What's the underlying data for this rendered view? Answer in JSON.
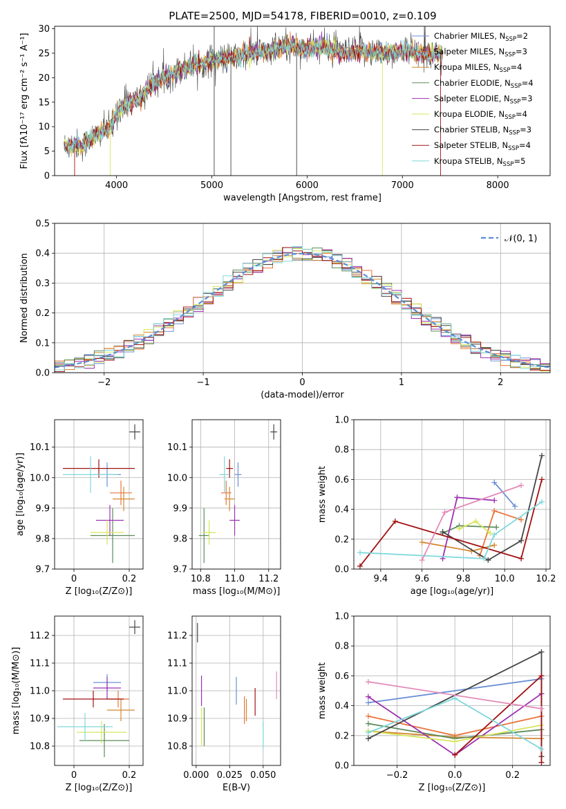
{
  "figure": {
    "title": "PLATE=2500, MJD=54178, FIBERID=0010, z=0.109"
  },
  "models": [
    {
      "name": "Chabrier MILES",
      "nssp": "2",
      "color": "#6b8fd6"
    },
    {
      "name": "Salpeter MILES",
      "nssp": "3",
      "color": "#e8743b"
    },
    {
      "name": "Kroupa MILES",
      "nssp": "4",
      "color": "#d4872f"
    },
    {
      "name": "Chabrier ELODIE",
      "nssp": "4",
      "color": "#5a8a5a"
    },
    {
      "name": "Salpeter ELODIE",
      "nssp": "3",
      "color": "#9b30b0"
    },
    {
      "name": "Kroupa ELODIE",
      "nssp": "4",
      "color": "#d6e55a"
    },
    {
      "name": "Chabrier STELIB",
      "nssp": "3",
      "color": "#444444"
    },
    {
      "name": "Salpeter STELIB",
      "nssp": "4",
      "color": "#a01010"
    },
    {
      "name": "Kroupa STELIB",
      "nssp": "5",
      "color": "#7fd8dc"
    }
  ],
  "chart_data": [
    {
      "id": "spectrum",
      "type": "line",
      "xlabel": "wavelength [Angstrom, rest frame]",
      "ylabel": "Flux [fλ10⁻¹⁷ erg cm⁻² s⁻¹ A⁻¹]",
      "xlim": [
        3350,
        8550
      ],
      "ylim": [
        0,
        30.5
      ],
      "xticks": [
        4000,
        5000,
        6000,
        7000,
        8000
      ],
      "yticks": [
        0,
        5,
        10,
        15,
        20,
        25,
        30
      ],
      "legend_position": "top-right",
      "continuum": {
        "x": [
          3450,
          3560,
          3640,
          3720,
          3850,
          3950,
          4000,
          4100,
          4250,
          4400,
          4600,
          4800,
          5000,
          5200,
          5400,
          5600,
          5800,
          6000,
          6200,
          6400,
          6600,
          6800,
          7000,
          7200,
          7400
        ],
        "y": [
          6.0,
          6.5,
          6.0,
          7.5,
          9.0,
          10.0,
          13.0,
          14.5,
          16.0,
          19.0,
          21.0,
          22.5,
          23.5,
          24.0,
          25.0,
          25.5,
          26.5,
          26.0,
          26.0,
          25.0,
          25.5,
          25.0,
          25.5,
          25.0,
          25.0
        ]
      }
    },
    {
      "id": "residuals",
      "type": "histogram",
      "xlabel": "(data-model)/error",
      "ylabel": "Normed distribution",
      "xlim": [
        -2.5,
        2.5
      ],
      "ylim": [
        0,
        0.5
      ],
      "xticks": [
        -2,
        -1,
        0,
        1,
        2
      ],
      "yticks": [
        0.0,
        0.1,
        0.2,
        0.3,
        0.4,
        0.5
      ],
      "grid": true,
      "bin_width": 0.1,
      "normal_label": "𝒩(0, 1)",
      "normal_color": "#5b8bd6",
      "legend_position": "top-right"
    },
    {
      "id": "age-vs-Z",
      "type": "scatter-errorbar",
      "xlabel": "Z [log₁₀(Z/Z⊙)]",
      "ylabel": "age  [log₁₀(age/yr)]",
      "xlim": [
        -0.07,
        0.25
      ],
      "ylim": [
        9.7,
        10.19
      ],
      "xticks": [
        0.0,
        0.2
      ],
      "yticks": [
        9.7,
        9.8,
        9.9,
        10.0,
        10.1
      ],
      "grid": true,
      "points": [
        {
          "model": 0,
          "x": 0.12,
          "xerr": 0.05,
          "y": 10.01,
          "yerr": 0.04
        },
        {
          "model": 1,
          "x": 0.17,
          "xerr": 0.04,
          "y": 9.95,
          "yerr": 0.04
        },
        {
          "model": 2,
          "x": 0.18,
          "xerr": 0.04,
          "y": 9.93,
          "yerr": 0.04
        },
        {
          "model": 3,
          "x": 0.14,
          "xerr": 0.08,
          "y": 9.81,
          "yerr": 0.09
        },
        {
          "model": 4,
          "x": 0.13,
          "xerr": 0.05,
          "y": 9.86,
          "yerr": 0.05
        },
        {
          "model": 5,
          "x": 0.12,
          "xerr": 0.06,
          "y": 9.82,
          "yerr": 0.04
        },
        {
          "model": 6,
          "x": 0.22,
          "xerr": 0.02,
          "y": 10.15,
          "yerr": 0.025
        },
        {
          "model": 7,
          "x": 0.09,
          "xerr": 0.13,
          "y": 10.03,
          "yerr": 0.03
        },
        {
          "model": 8,
          "x": 0.06,
          "xerr": 0.1,
          "y": 10.01,
          "yerr": 0.06
        }
      ]
    },
    {
      "id": "age-vs-mass",
      "type": "scatter-errorbar",
      "xlabel": "mass [log₁₀(M/M⊙)]",
      "ylabel": "",
      "xlim": [
        10.75,
        11.27
      ],
      "ylim": [
        9.7,
        10.19
      ],
      "xticks": [
        10.8,
        11.0,
        11.2
      ],
      "yticks": [
        9.7,
        9.8,
        9.9,
        10.0,
        10.1
      ],
      "grid": true,
      "points": [
        {
          "model": 0,
          "x": 11.02,
          "xerr": 0.02,
          "y": 10.01,
          "yerr": 0.04
        },
        {
          "model": 1,
          "x": 10.95,
          "xerr": 0.03,
          "y": 9.95,
          "yerr": 0.04
        },
        {
          "model": 2,
          "x": 10.97,
          "xerr": 0.03,
          "y": 9.93,
          "yerr": 0.04
        },
        {
          "model": 3,
          "x": 10.82,
          "xerr": 0.03,
          "y": 9.81,
          "yerr": 0.09
        },
        {
          "model": 4,
          "x": 11.0,
          "xerr": 0.03,
          "y": 9.86,
          "yerr": 0.05
        },
        {
          "model": 5,
          "x": 10.85,
          "xerr": 0.04,
          "y": 9.82,
          "yerr": 0.04
        },
        {
          "model": 6,
          "x": 11.23,
          "xerr": 0.02,
          "y": 10.15,
          "yerr": 0.025
        },
        {
          "model": 7,
          "x": 10.97,
          "xerr": 0.02,
          "y": 10.03,
          "yerr": 0.03
        },
        {
          "model": 8,
          "x": 10.94,
          "xerr": 0.03,
          "y": 10.01,
          "yerr": 0.06
        }
      ]
    },
    {
      "id": "weight-vs-age",
      "type": "line",
      "xlabel": "age  [log₁₀(age/yr)]",
      "ylabel": "mass weight",
      "xlim": [
        9.27,
        10.22
      ],
      "ylim": [
        0,
        1.0
      ],
      "xticks": [
        9.4,
        9.6,
        9.8,
        10.0,
        10.2
      ],
      "yticks": [
        0.0,
        0.2,
        0.4,
        0.6,
        0.8,
        1.0
      ],
      "grid": true,
      "series": [
        {
          "model": 0,
          "x": [
            9.95,
            10.05
          ],
          "y": [
            0.58,
            0.42
          ]
        },
        {
          "model": 1,
          "x": [
            9.88,
            9.95,
            10.08
          ],
          "y": [
            0.09,
            0.39,
            0.33
          ]
        },
        {
          "model": 2,
          "x": [
            9.6,
            9.84,
            9.95
          ],
          "y": [
            0.18,
            0.12,
            0.16
          ]
        },
        {
          "model": 3,
          "x": [
            9.7,
            9.78,
            9.96
          ],
          "y": [
            0.24,
            0.29,
            0.28
          ]
        },
        {
          "model": 4,
          "x": [
            9.7,
            9.77,
            9.95
          ],
          "y": [
            0.07,
            0.48,
            0.46
          ]
        },
        {
          "model": 5,
          "x": [
            9.78,
            9.86,
            9.93
          ],
          "y": [
            0.27,
            0.32,
            0.24
          ]
        },
        {
          "model": 6,
          "x": [
            9.7,
            9.92,
            10.08,
            10.18
          ],
          "y": [
            0.25,
            0.06,
            0.19,
            0.76
          ]
        },
        {
          "model": 7,
          "x": [
            9.3,
            9.47,
            10.08,
            10.18
          ],
          "y": [
            0.02,
            0.32,
            0.07,
            0.6
          ]
        },
        {
          "model": 8,
          "x": [
            9.3,
            9.9,
            9.95,
            10.18
          ],
          "y": [
            0.11,
            0.07,
            0.23,
            0.45
          ]
        }
      ],
      "extra_series": [
        {
          "color": "#e38ab8",
          "x": [
            9.6,
            9.71,
            10.08
          ],
          "y": [
            0.06,
            0.38,
            0.56
          ]
        }
      ]
    },
    {
      "id": "mass-vs-Z",
      "type": "scatter-errorbar",
      "xlabel": "Z [log₁₀(Z/Z⊙)]",
      "ylabel": "mass [log₁₀(M/M⊙)]",
      "xlim": [
        -0.07,
        0.25
      ],
      "ylim": [
        10.73,
        11.27
      ],
      "xticks": [
        0.0,
        0.2
      ],
      "yticks": [
        10.8,
        10.9,
        11.0,
        11.1,
        11.2
      ],
      "grid": true,
      "points": [
        {
          "model": 0,
          "x": 0.12,
          "xerr": 0.05,
          "y": 11.03,
          "yerr": 0.03
        },
        {
          "model": 1,
          "x": 0.16,
          "xerr": 0.04,
          "y": 10.97,
          "yerr": 0.03
        },
        {
          "model": 2,
          "x": 0.17,
          "xerr": 0.05,
          "y": 10.93,
          "yerr": 0.04
        },
        {
          "model": 3,
          "x": 0.11,
          "xerr": 0.09,
          "y": 10.82,
          "yerr": 0.06
        },
        {
          "model": 4,
          "x": 0.12,
          "xerr": 0.05,
          "y": 11.01,
          "yerr": 0.04
        },
        {
          "model": 5,
          "x": 0.1,
          "xerr": 0.09,
          "y": 10.85,
          "yerr": 0.04
        },
        {
          "model": 6,
          "x": 0.22,
          "xerr": 0.02,
          "y": 11.23,
          "yerr": 0.025
        },
        {
          "model": 7,
          "x": 0.07,
          "xerr": 0.11,
          "y": 10.97,
          "yerr": 0.03
        },
        {
          "model": 8,
          "x": 0.04,
          "xerr": 0.1,
          "y": 10.87,
          "yerr": 0.05
        }
      ]
    },
    {
      "id": "mass-vs-ebv",
      "type": "scatter-errorbar",
      "xlabel": "E(B-V)",
      "ylabel": "",
      "xlim": [
        -0.003,
        0.063
      ],
      "ylim": [
        10.73,
        11.27
      ],
      "xticks": [
        0.0,
        0.025,
        0.05
      ],
      "yticks": [
        10.8,
        10.9,
        11.0,
        11.1,
        11.2
      ],
      "grid": true,
      "points": [
        {
          "model": 0,
          "x": 0.03,
          "xerr": 0.0,
          "y": 11.0,
          "yerr": 0.05
        },
        {
          "model": 1,
          "x": 0.036,
          "xerr": 0.0,
          "y": 10.93,
          "yerr": 0.05
        },
        {
          "model": 2,
          "x": 0.0375,
          "xerr": 0.0,
          "y": 10.93,
          "yerr": 0.04
        },
        {
          "model": 3,
          "x": 0.006,
          "xerr": 0.0,
          "y": 10.87,
          "yerr": 0.07
        },
        {
          "model": 4,
          "x": 0.004,
          "xerr": 0.0,
          "y": 11.0,
          "yerr": 0.055
        },
        {
          "model": 5,
          "x": 0.004,
          "xerr": 0.0,
          "y": 10.87,
          "yerr": 0.07
        },
        {
          "model": 6,
          "x": 0.001,
          "xerr": 0.0,
          "y": 11.21,
          "yerr": 0.035
        },
        {
          "model": 7,
          "x": 0.044,
          "xerr": 0.0,
          "y": 10.96,
          "yerr": 0.05
        },
        {
          "model": 8,
          "x": 0.05,
          "xerr": 0.0,
          "y": 10.84,
          "yerr": 0.05
        }
      ],
      "extra_points": [
        {
          "color": "#e38ab8",
          "x": 0.06,
          "xerr": 0.0,
          "y": 11.02,
          "yerr": 0.05
        }
      ]
    },
    {
      "id": "weight-vs-Z",
      "type": "line",
      "xlabel": "Z [log₁₀(Z/Z⊙)]",
      "ylabel": "mass weight",
      "xlim": [
        -0.35,
        0.33
      ],
      "ylim": [
        0,
        1.0
      ],
      "xticks": [
        -0.2,
        0.0,
        0.2
      ],
      "yticks": [
        0.0,
        0.2,
        0.4,
        0.6,
        0.8,
        1.0
      ],
      "grid": true,
      "series": [
        {
          "model": 0,
          "x": [
            -0.3,
            0.3
          ],
          "y": [
            0.42,
            0.58
          ]
        },
        {
          "model": 1,
          "x": [
            -0.3,
            0.0,
            0.3
          ],
          "y": [
            0.33,
            0.2,
            0.33
          ]
        },
        {
          "model": 2,
          "x": [
            -0.3,
            0.0,
            0.3
          ],
          "y": [
            0.23,
            0.19,
            0.18
          ]
        },
        {
          "model": 3,
          "x": [
            -0.3,
            0.0,
            0.3
          ],
          "y": [
            0.28,
            0.18,
            0.24
          ]
        },
        {
          "model": 4,
          "x": [
            -0.3,
            0.0,
            0.3
          ],
          "y": [
            0.46,
            0.07,
            0.48
          ]
        },
        {
          "model": 5,
          "x": [
            -0.3,
            0.0,
            0.3
          ],
          "y": [
            0.23,
            0.16,
            0.27
          ]
        },
        {
          "model": 6,
          "x": [
            -0.3,
            0.3,
            0.3
          ],
          "y": [
            0.18,
            0.76,
            0.06
          ]
        },
        {
          "model": 7,
          "x": [
            0.0,
            0.3,
            0.3
          ],
          "y": [
            0.07,
            0.6,
            0.02
          ]
        },
        {
          "model": 8,
          "x": [
            -0.3,
            0.0,
            0.3
          ],
          "y": [
            0.22,
            0.45,
            0.11
          ]
        }
      ],
      "extra_series": [
        {
          "color": "#e38ab8",
          "x": [
            -0.3,
            0.3
          ],
          "y": [
            0.56,
            0.38
          ]
        }
      ]
    }
  ]
}
